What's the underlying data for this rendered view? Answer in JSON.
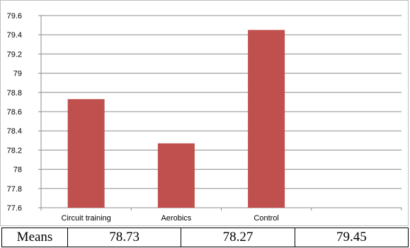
{
  "chart_data": {
    "type": "bar",
    "categories": [
      "Circuit training",
      "Aerobics",
      "Control"
    ],
    "values": [
      78.73,
      78.27,
      79.45
    ],
    "ylim": [
      77.6,
      79.6
    ],
    "yticks": [
      "77.6",
      "77.8",
      "78",
      "78.2",
      "78.4",
      "78.6",
      "78.8",
      "79",
      "79.2",
      "79.4",
      "79.6"
    ],
    "bar_color": "#c0504d",
    "gridlines": true
  },
  "table": {
    "row_label": "Means",
    "values": [
      "78.73",
      "78.27",
      "79.45"
    ]
  }
}
